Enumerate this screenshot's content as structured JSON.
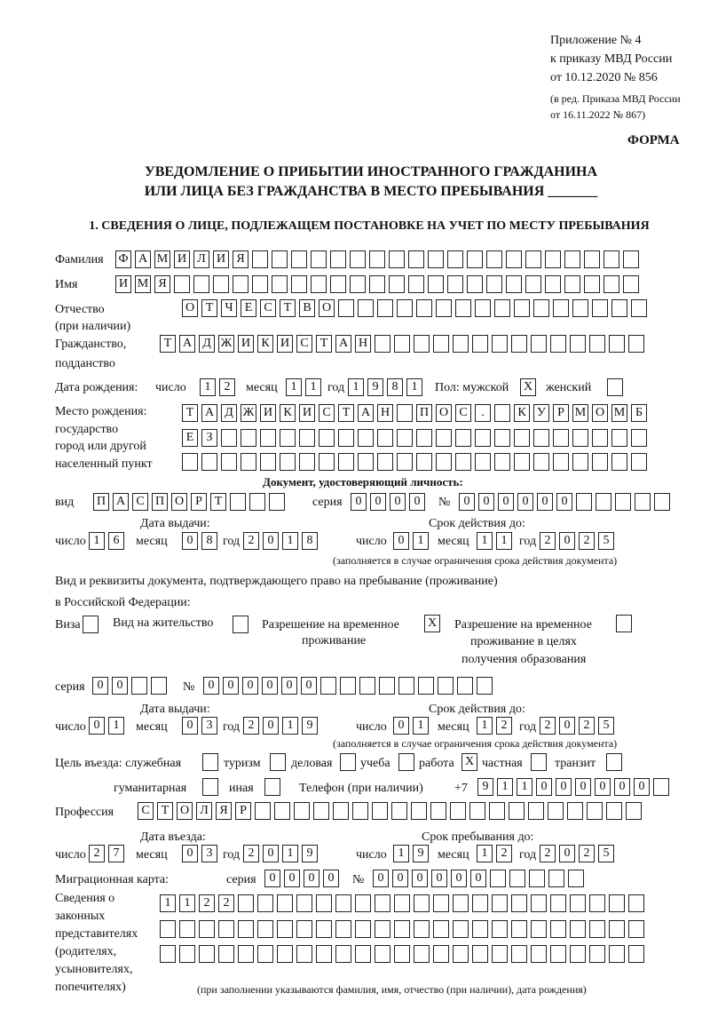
{
  "header": {
    "annex": "Приложение № 4",
    "order": "к приказу МВД России",
    "order_date": "от 10.12.2020 № 856",
    "revision1": "(в ред. Приказа МВД России",
    "revision2": "от 16.11.2022 № 867)",
    "form_label": "ФОРМА",
    "title1": "УВЕДОМЛЕНИЕ О ПРИБЫТИИ ИНОСТРАННОГО ГРАЖДАНИНА",
    "title2": "ИЛИ ЛИЦА БЕЗ ГРАЖДАНСТВА В МЕСТО ПРЕБЫВАНИЯ _______",
    "section1": "1. СВЕДЕНИЯ О ЛИЦЕ, ПОДЛЕЖАЩЕМ ПОСТАНОВКЕ НА УЧЕТ ПО МЕСТУ ПРЕБЫВАНИЯ"
  },
  "labels": {
    "surname": "Фамилия",
    "name": "Имя",
    "patronymic": "Отчество",
    "patronymic_note": "(при наличии)",
    "citizenship": "Гражданство,",
    "citizenship2": "подданство",
    "birth_date": "Дата рождения:",
    "day": "число",
    "month": "месяц",
    "year": "год",
    "sex": "Пол: мужской",
    "female": "женский",
    "birthplace1": "Место рождения:",
    "birthplace2": "государство",
    "birthplace3": "город или другой",
    "birthplace4": "населенный пункт",
    "id_doc": "Документ, удостоверяющий личность:",
    "kind": "вид",
    "series": "серия",
    "number": "№",
    "issue_date": "Дата выдачи:",
    "valid_until": "Срок действия до:",
    "validity_note": "(заполняется в случае ограничения срока действия документа)",
    "right_doc1": "Вид и реквизиты документа, подтверждающего право на пребывание (проживание)",
    "right_doc2": "в Российской Федерации:",
    "visa": "Виза",
    "residence": "Вид на жительство",
    "temp_res1": "Разрешение на временное",
    "temp_res2": "проживание",
    "temp_edu1": "Разрешение на временное",
    "temp_edu2": "проживание в целях",
    "temp_edu3": "получения образования",
    "purpose": "Цель въезда: служебная",
    "tourism": "туризм",
    "business": "деловая",
    "study": "учеба",
    "work": "работа",
    "private": "частная",
    "transit": "транзит",
    "humanitarian": "гуманитарная",
    "other": "иная",
    "phone": "Телефон (при наличии)",
    "phone_prefix": "+7",
    "profession": "Профессия",
    "entry_date": "Дата въезда:",
    "stay_until": "Срок пребывания до:",
    "migration_card": "Миграционная карта:",
    "reps1": "Сведения о",
    "reps2": "законных",
    "reps3": "представителях",
    "reps4": "(родителях,",
    "reps5": "усыновителях,",
    "reps6": "попечителях)",
    "reps_note": "(при заполнении указываются фамилия, имя, отчество (при наличии), дата рождения)"
  },
  "fields": {
    "surname": [
      "Ф",
      "А",
      "М",
      "И",
      "Л",
      "И",
      "Я",
      "",
      "",
      "",
      "",
      "",
      "",
      "",
      "",
      "",
      "",
      "",
      "",
      "",
      "",
      "",
      "",
      "",
      "",
      "",
      ""
    ],
    "name": [
      "И",
      "М",
      "Я",
      "",
      "",
      "",
      "",
      "",
      "",
      "",
      "",
      "",
      "",
      "",
      "",
      "",
      "",
      "",
      "",
      "",
      "",
      "",
      "",
      "",
      "",
      "",
      ""
    ],
    "patronymic": [
      "О",
      "Т",
      "Ч",
      "Е",
      "С",
      "Т",
      "В",
      "О",
      "",
      "",
      "",
      "",
      "",
      "",
      "",
      "",
      "",
      "",
      "",
      "",
      "",
      "",
      "",
      ""
    ],
    "citizenship": [
      "Т",
      "А",
      "Д",
      "Ж",
      "И",
      "К",
      "И",
      "С",
      "Т",
      "А",
      "Н",
      "",
      "",
      "",
      "",
      "",
      "",
      "",
      "",
      "",
      "",
      "",
      "",
      "",
      ""
    ],
    "birth_day": [
      "1",
      "2"
    ],
    "birth_month": [
      "1",
      "1"
    ],
    "birth_year": [
      "1",
      "9",
      "8",
      "1"
    ],
    "sex_male": [
      "X"
    ],
    "sex_female": [
      ""
    ],
    "birthplace_row1": [
      "Т",
      "А",
      "Д",
      "Ж",
      "И",
      "К",
      "И",
      "С",
      "Т",
      "А",
      "Н",
      "",
      "П",
      "О",
      "С",
      ".",
      "",
      "К",
      "У",
      "Р",
      "М",
      "О",
      "М",
      "Б"
    ],
    "birthplace_row2": [
      "Е",
      "З",
      "",
      "",
      "",
      "",
      "",
      "",
      "",
      "",
      "",
      "",
      "",
      "",
      "",
      "",
      "",
      "",
      "",
      "",
      "",
      "",
      "",
      ""
    ],
    "birthplace_row3": [
      "",
      "",
      "",
      "",
      "",
      "",
      "",
      "",
      "",
      "",
      "",
      "",
      "",
      "",
      "",
      "",
      "",
      "",
      "",
      "",
      "",
      "",
      "",
      ""
    ],
    "id_kind": [
      "П",
      "А",
      "С",
      "П",
      "О",
      "Р",
      "Т",
      "",
      "",
      ""
    ],
    "id_series": [
      "0",
      "0",
      "0",
      "0"
    ],
    "id_number": [
      "0",
      "0",
      "0",
      "0",
      "0",
      "0",
      "",
      "",
      "",
      "",
      ""
    ],
    "id_issue_day": [
      "1",
      "6"
    ],
    "id_issue_month": [
      "0",
      "8"
    ],
    "id_issue_year": [
      "2",
      "0",
      "1",
      "8"
    ],
    "id_valid_day": [
      "0",
      "1"
    ],
    "id_valid_month": [
      "1",
      "1"
    ],
    "id_valid_year": [
      "2",
      "0",
      "2",
      "5"
    ],
    "visa": [
      ""
    ],
    "residence": [
      ""
    ],
    "temp_res": [
      "X"
    ],
    "temp_edu": [
      ""
    ],
    "right_series": [
      "0",
      "0",
      "",
      ""
    ],
    "right_number": [
      "0",
      "0",
      "0",
      "0",
      "0",
      "0",
      "",
      "",
      "",
      "",
      "",
      "",
      "",
      "",
      ""
    ],
    "right_issue_day": [
      "0",
      "1"
    ],
    "right_issue_month": [
      "0",
      "3"
    ],
    "right_issue_year": [
      "2",
      "0",
      "1",
      "9"
    ],
    "right_valid_day": [
      "0",
      "1"
    ],
    "right_valid_month": [
      "1",
      "2"
    ],
    "right_valid_year": [
      "2",
      "0",
      "2",
      "5"
    ],
    "purpose_service": [
      ""
    ],
    "purpose_tourism": [
      ""
    ],
    "purpose_business": [
      ""
    ],
    "purpose_study": [
      ""
    ],
    "purpose_work": [
      "X"
    ],
    "purpose_private": [
      ""
    ],
    "purpose_transit": [
      ""
    ],
    "purpose_humanitarian": [
      ""
    ],
    "purpose_other": [
      ""
    ],
    "phone": [
      "9",
      "1",
      "1",
      "0",
      "0",
      "0",
      "0",
      "0",
      "0",
      ""
    ],
    "profession": [
      "С",
      "Т",
      "О",
      "Л",
      "Я",
      "Р",
      "",
      "",
      "",
      "",
      "",
      "",
      "",
      "",
      "",
      "",
      "",
      "",
      "",
      "",
      "",
      "",
      "",
      "",
      "",
      ""
    ],
    "entry_day": [
      "2",
      "7"
    ],
    "entry_month": [
      "0",
      "3"
    ],
    "entry_year": [
      "2",
      "0",
      "1",
      "9"
    ],
    "stay_day": [
      "1",
      "9"
    ],
    "stay_month": [
      "1",
      "2"
    ],
    "stay_year": [
      "2",
      "0",
      "2",
      "5"
    ],
    "mc_series": [
      "0",
      "0",
      "0",
      "0"
    ],
    "mc_number": [
      "0",
      "0",
      "0",
      "0",
      "0",
      "0",
      "",
      "",
      "",
      "",
      ""
    ],
    "reps_row1": [
      "1",
      "1",
      "2",
      "2",
      "",
      "",
      "",
      "",
      "",
      "",
      "",
      "",
      "",
      "",
      "",
      "",
      "",
      "",
      "",
      "",
      "",
      "",
      "",
      "",
      ""
    ],
    "reps_row2": [
      "",
      "",
      "",
      "",
      "",
      "",
      "",
      "",
      "",
      "",
      "",
      "",
      "",
      "",
      "",
      "",
      "",
      "",
      "",
      "",
      "",
      "",
      "",
      "",
      ""
    ],
    "reps_row3": [
      "",
      "",
      "",
      "",
      "",
      "",
      "",
      "",
      "",
      "",
      "",
      "",
      "",
      "",
      "",
      "",
      "",
      "",
      "",
      "",
      "",
      "",
      "",
      "",
      ""
    ]
  }
}
